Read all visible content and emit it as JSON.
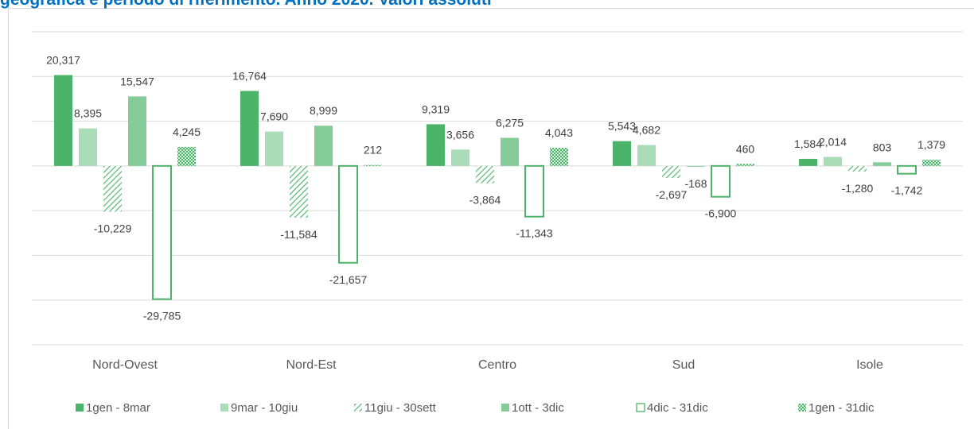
{
  "chart_data": {
    "type": "bar",
    "title": "geografica e periodo di riferimento. Anno 2020. Valori assoluti",
    "categories": [
      "Nord-Ovest",
      "Nord-Est",
      "Centro",
      "Sud",
      "Isole"
    ],
    "series": [
      {
        "name": "1gen - 8mar",
        "color": "#4cb36a",
        "fill_style": "solid",
        "values": [
          20317,
          16764,
          9319,
          5543,
          1584
        ],
        "value_labels": [
          "20,317",
          "16,764",
          "9,319",
          "5,543",
          "1,584"
        ]
      },
      {
        "name": "9mar - 10giu",
        "color": "#a9dcb7",
        "fill_style": "solid",
        "values": [
          8395,
          7690,
          3656,
          4682,
          2014
        ],
        "value_labels": [
          "8,395",
          "7,690",
          "3,656",
          "4,682",
          "2,014"
        ]
      },
      {
        "name": "11giu - 30sett",
        "color": "#5cb878",
        "fill_style": "hatch",
        "values": [
          -10229,
          -11584,
          -3864,
          -2697,
          -1280
        ],
        "value_labels": [
          "-10,229",
          "-11,584",
          "-3,864",
          "-2,697",
          "-1,280"
        ]
      },
      {
        "name": "1ott - 3dic",
        "color": "#86cc98",
        "fill_style": "solid",
        "values": [
          15547,
          8999,
          6275,
          -168,
          803
        ],
        "value_labels": [
          "15,547",
          "8,999",
          "6,275",
          "-168",
          "803"
        ]
      },
      {
        "name": "4dic - 31dic",
        "color": "#4cb36a",
        "fill_style": "outline",
        "values": [
          -29785,
          -21657,
          -11343,
          -6900,
          -1742
        ],
        "value_labels": [
          "-29,785",
          "-21,657",
          "-11,343",
          "-6,900",
          "-1,742"
        ]
      },
      {
        "name": "1gen - 31dic",
        "color": "#4cb36a",
        "fill_style": "checker",
        "values": [
          4245,
          212,
          4043,
          460,
          1379
        ],
        "value_labels": [
          "4,245",
          "212",
          "4,043",
          "460",
          "1,379"
        ]
      }
    ],
    "ylim": [
      -40000,
      30000
    ],
    "yticks": [
      -40000,
      -30000,
      -20000,
      -10000,
      0,
      10000,
      20000,
      30000
    ],
    "grid": true,
    "legend": "bottom"
  }
}
